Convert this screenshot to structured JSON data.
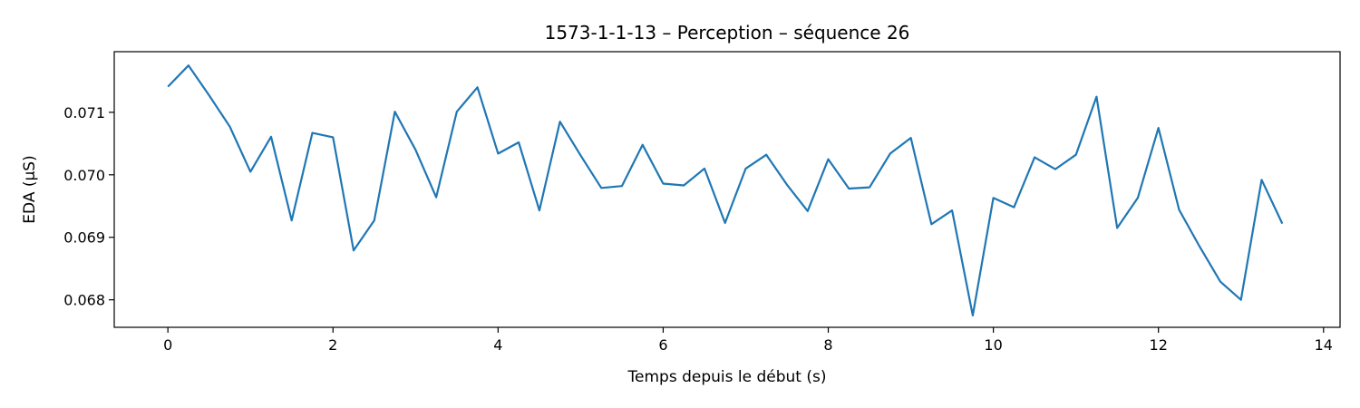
{
  "chart_data": {
    "type": "line",
    "title": "1573-1-1-13 – Perception – séquence 26",
    "xlabel": "Temps depuis le début (s)",
    "ylabel": "EDA (µS)",
    "xlim": [
      -0.65,
      14.2
    ],
    "ylim": [
      0.06756,
      0.07197
    ],
    "xticks": [
      0,
      2,
      4,
      6,
      8,
      10,
      12,
      14
    ],
    "xtick_labels": [
      "0",
      "2",
      "4",
      "6",
      "8",
      "10",
      "12",
      "14"
    ],
    "yticks": [
      0.068,
      0.069,
      0.07,
      0.071
    ],
    "ytick_labels": [
      "0.068",
      "0.069",
      "0.070",
      "0.071"
    ],
    "grid": false,
    "series": [
      {
        "color": "#1f77b4",
        "x": [
          0,
          0.25,
          0.5,
          0.75,
          1,
          1.25,
          1.5,
          1.75,
          2,
          2.25,
          2.5,
          2.75,
          3,
          3.25,
          3.5,
          3.75,
          4,
          4.25,
          4.5,
          4.75,
          5,
          5.25,
          5.5,
          5.75,
          6,
          6.25,
          6.5,
          6.75,
          7,
          7.25,
          7.5,
          7.75,
          8,
          8.25,
          8.5,
          8.75,
          9,
          9.25,
          9.5,
          9.75,
          10,
          10.25,
          10.5,
          10.75,
          11,
          11.25,
          11.5,
          11.75,
          12,
          12.25,
          12.5,
          12.75,
          13,
          13.25,
          13.5
        ],
        "y": [
          0.07141,
          0.07175,
          0.07127,
          0.07077,
          0.07005,
          0.07061,
          0.06927,
          0.07067,
          0.0706,
          0.06879,
          0.06927,
          0.07101,
          0.0704,
          0.06964,
          0.07101,
          0.0714,
          0.07034,
          0.07052,
          0.06943,
          0.07085,
          0.07031,
          0.06979,
          0.06982,
          0.07048,
          0.06986,
          0.06983,
          0.0701,
          0.06923,
          0.0701,
          0.07032,
          0.06984,
          0.06942,
          0.07025,
          0.06978,
          0.0698,
          0.07034,
          0.07059,
          0.06921,
          0.06943,
          0.06775,
          0.06963,
          0.06948,
          0.07028,
          0.07009,
          0.07032,
          0.07125,
          0.06915,
          0.06963,
          0.07075,
          0.06944,
          0.06885,
          0.06829,
          0.068,
          0.06992,
          0.06922
        ]
      }
    ]
  }
}
